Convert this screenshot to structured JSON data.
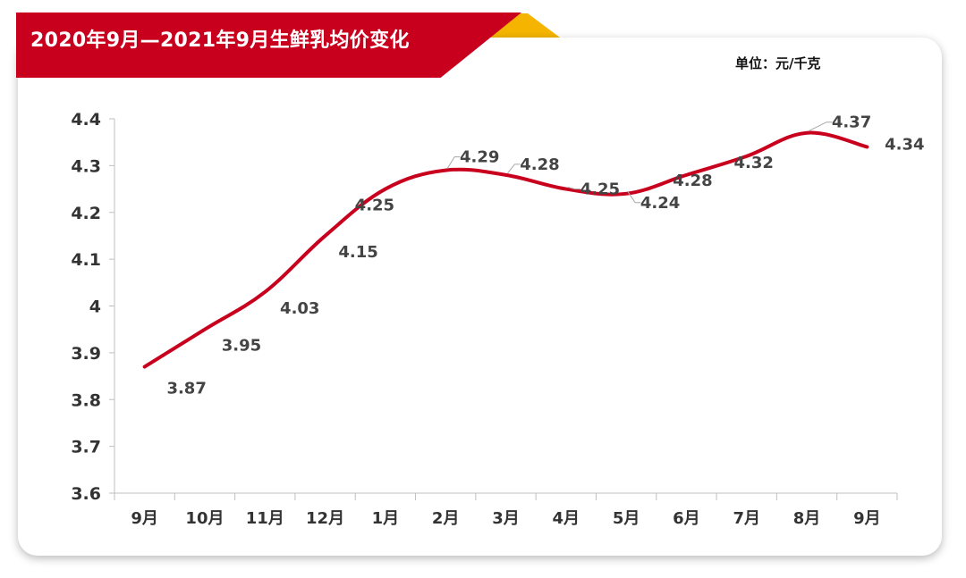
{
  "header": {
    "title": "2020年9月—2021年9月生鲜乳均价变化",
    "unit": "单位：元/千克"
  },
  "colors": {
    "banner": "#c8001e",
    "accent": "#f4b400",
    "line": "#c8001e"
  },
  "chart_data": {
    "type": "line",
    "title": "2020年9月—2021年9月生鲜乳均价变化",
    "categories": [
      "9月",
      "10月",
      "11月",
      "12月",
      "1月",
      "2月",
      "3月",
      "4月",
      "5月",
      "6月",
      "7月",
      "8月",
      "9月"
    ],
    "series": [
      {
        "values": [
          3.87,
          3.95,
          4.03,
          4.15,
          4.25,
          4.29,
          4.28,
          4.25,
          4.24,
          4.28,
          4.32,
          4.37,
          4.34
        ]
      }
    ],
    "ylim": [
      3.6,
      4.4
    ],
    "yticks": [
      "3.6",
      "3.7",
      "3.8",
      "3.9",
      "4",
      "4.1",
      "4.2",
      "4.3",
      "4.4"
    ],
    "grid": false,
    "legend": "none"
  }
}
